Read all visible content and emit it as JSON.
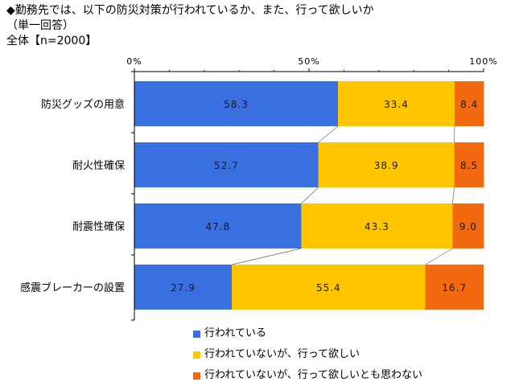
{
  "header": {
    "title": "◆勤務先では、以下の防災対策が行われているか、また、行って欲しいか",
    "subtitle": "（単一回答）",
    "sample": "全体【n=2000】"
  },
  "colors": {
    "series1": "#3a6fe0",
    "series2": "#ffc600",
    "series3": "#f26a10",
    "axis": "#000000"
  },
  "chart_data": {
    "type": "bar",
    "orientation": "horizontal",
    "stacked": true,
    "percent_stacked": true,
    "categories": [
      "防災グッズの用意",
      "耐火性確保",
      "耐震性確保",
      "感震ブレーカーの設置"
    ],
    "series": [
      {
        "name": "行われている",
        "values": [
          58.3,
          52.7,
          47.8,
          27.9
        ]
      },
      {
        "name": "行われていないが、行って欲しい",
        "values": [
          33.4,
          38.9,
          43.3,
          55.4
        ]
      },
      {
        "name": "行われていないが、行って欲しいとも思わない",
        "values": [
          8.4,
          8.5,
          9.0,
          16.7
        ]
      }
    ],
    "value_labels": [
      [
        "58.3",
        "52.7",
        "47.8",
        "27.9"
      ],
      [
        "33.4",
        "38.9",
        "43.3",
        "55.4"
      ],
      [
        "8.4",
        "8.5",
        "9.0",
        "16.7"
      ]
    ],
    "xlim": [
      0,
      100
    ],
    "xticks": [
      "0%",
      "50%",
      "100%"
    ],
    "grid": false,
    "legend_position": "bottom"
  }
}
